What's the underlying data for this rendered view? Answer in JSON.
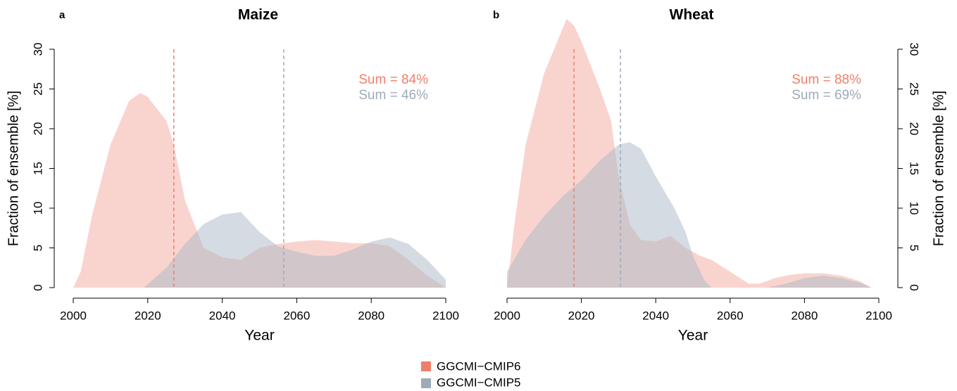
{
  "chart_data": [
    {
      "type": "area",
      "panel": "a",
      "title": "Maize",
      "xlabel": "Year",
      "ylabel": "Fraction of ensemble [%]",
      "y_axis_side": "left",
      "xlim": [
        2000,
        2100
      ],
      "xticks": [
        2000,
        2020,
        2040,
        2060,
        2080,
        2100
      ],
      "ylim": [
        0,
        30
      ],
      "yticks": [
        0,
        5,
        10,
        15,
        20,
        25,
        30
      ],
      "series": [
        {
          "name": "GGCMI−CMIP6",
          "color": "#f07f6a",
          "fill": "#f4a9a0",
          "vline": 2027,
          "annotation": "Sum = 84%",
          "x": [
            2000,
            2002,
            2005,
            2010,
            2015,
            2018,
            2020,
            2025,
            2027,
            2030,
            2035,
            2040,
            2045,
            2050,
            2055,
            2060,
            2065,
            2070,
            2075,
            2080,
            2085,
            2090,
            2095,
            2100
          ],
          "values": [
            0,
            2,
            9,
            18,
            23.5,
            24.5,
            24,
            21,
            18,
            11,
            5,
            3.8,
            3.5,
            5,
            5.5,
            5.8,
            6,
            5.8,
            5.6,
            5.6,
            5.2,
            3.5,
            1.5,
            0
          ]
        },
        {
          "name": "GGCMI−CMIP5",
          "color": "#9eabb9",
          "fill": "#a9b7c6",
          "vline": 2056.5,
          "annotation": "Sum = 46%",
          "x": [
            2019,
            2025,
            2030,
            2035,
            2040,
            2045,
            2050,
            2055,
            2060,
            2065,
            2070,
            2075,
            2080,
            2085,
            2090,
            2095,
            2100
          ],
          "values": [
            0,
            2.5,
            5.5,
            8,
            9.2,
            9.5,
            7,
            5.2,
            4.5,
            4,
            4,
            4.8,
            5.8,
            6.3,
            5.5,
            3.5,
            1
          ]
        }
      ]
    },
    {
      "type": "area",
      "panel": "b",
      "title": "Wheat",
      "xlabel": "Year",
      "ylabel": "Fraction of ensemble [%]",
      "y_axis_side": "right",
      "xlim": [
        2000,
        2100
      ],
      "xticks": [
        2000,
        2020,
        2040,
        2060,
        2080,
        2100
      ],
      "ylim": [
        0,
        30
      ],
      "yticks": [
        0,
        5,
        10,
        15,
        20,
        25,
        30
      ],
      "series": [
        {
          "color": "#f07f6a",
          "fill": "#f4a9a0",
          "vline": 2018,
          "annotation": "Sum = 88%",
          "x": [
            2000,
            2002,
            2005,
            2010,
            2014,
            2016,
            2018,
            2020,
            2025,
            2028,
            2030,
            2033,
            2036,
            2040,
            2044,
            2048,
            2052,
            2055,
            2060,
            2065,
            2068,
            2072,
            2076,
            2080,
            2085,
            2090,
            2095,
            2098
          ],
          "values": [
            0,
            8,
            18,
            27,
            31.5,
            33.8,
            33,
            31,
            25,
            21,
            14,
            8,
            6,
            5.8,
            6.5,
            5,
            4,
            3.5,
            2,
            0.5,
            0.5,
            1.2,
            1.6,
            1.8,
            1.8,
            1.5,
            0.8,
            0
          ]
        },
        {
          "color": "#9eabb9",
          "fill": "#a9b7c6",
          "vline": 2030.5,
          "annotation": "Sum = 69%",
          "x": [
            2000,
            2005,
            2010,
            2015,
            2020,
            2025,
            2030,
            2033,
            2036,
            2040,
            2045,
            2048,
            2050,
            2053,
            2055,
            2060,
            2065,
            2070,
            2075,
            2080,
            2085,
            2090,
            2095,
            2098
          ],
          "values": [
            2,
            6,
            9,
            11.5,
            13.5,
            16,
            18,
            18.3,
            17.5,
            14,
            10,
            7,
            4,
            1,
            0,
            0,
            0,
            0,
            0.5,
            1.2,
            1.5,
            1.2,
            0.6,
            0
          ]
        }
      ]
    }
  ]
}
